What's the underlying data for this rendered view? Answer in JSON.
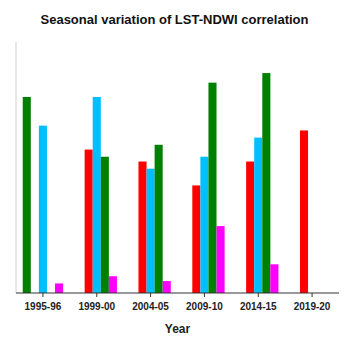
{
  "chart_data": {
    "type": "bar",
    "title": "Seasonal variation of LST-NDWI correlation",
    "xlabel": "Year",
    "categories": [
      "1995-96",
      "1999-00",
      "2004-05",
      "2009-10",
      "2014-15",
      "2019-20"
    ],
    "series": [
      {
        "color": "#008000",
        "values": [
          0.82,
          0.0,
          0.0,
          0.0,
          0.0,
          0.0
        ]
      },
      {
        "color": "#FF0000",
        "values": [
          0.0,
          0.6,
          0.55,
          0.45,
          0.55,
          0.68
        ]
      },
      {
        "color": "#00BFFF",
        "values": [
          0.7,
          0.82,
          0.52,
          0.57,
          0.65,
          0.0
        ]
      },
      {
        "color": "#008000",
        "values": [
          0.0,
          0.57,
          0.62,
          0.88,
          0.92,
          0.0
        ]
      },
      {
        "color": "#FF00FF",
        "values": [
          0.04,
          0.07,
          0.05,
          0.28,
          0.12,
          0.0
        ]
      }
    ],
    "ylim": [
      0,
      1.05
    ],
    "tick_labels": "x",
    "grid": false
  }
}
